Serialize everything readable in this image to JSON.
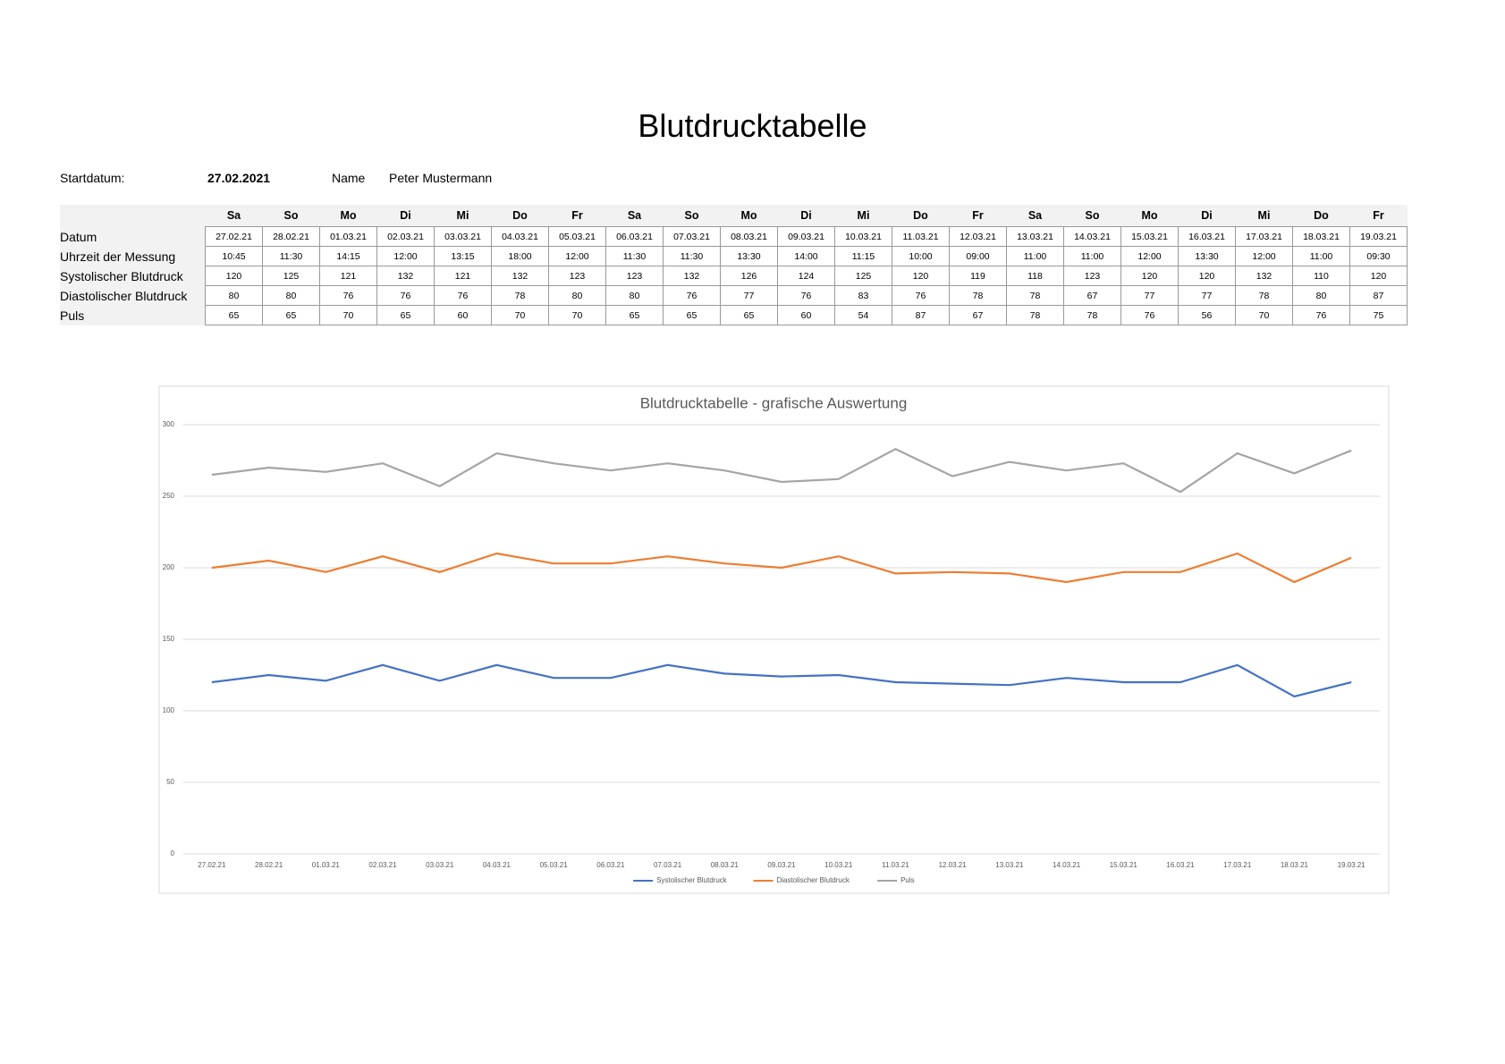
{
  "header": {
    "title": "Blutdrucktabelle",
    "start_label": "Startdatum:",
    "start_value": "27.02.2021",
    "name_label": "Name",
    "name_value": "Peter Mustermann"
  },
  "table": {
    "weekdays": [
      "Sa",
      "So",
      "Mo",
      "Di",
      "Mi",
      "Do",
      "Fr",
      "Sa",
      "So",
      "Mo",
      "Di",
      "Mi",
      "Do",
      "Fr",
      "Sa",
      "So",
      "Mo",
      "Di",
      "Mi",
      "Do",
      "Fr"
    ],
    "rows": [
      {
        "label": "Datum",
        "cells": [
          "27.02.21",
          "28.02.21",
          "01.03.21",
          "02.03.21",
          "03.03.21",
          "04.03.21",
          "05.03.21",
          "06.03.21",
          "07.03.21",
          "08.03.21",
          "09.03.21",
          "10.03.21",
          "11.03.21",
          "12.03.21",
          "13.03.21",
          "14.03.21",
          "15.03.21",
          "16.03.21",
          "17.03.21",
          "18.03.21",
          "19.03.21"
        ]
      },
      {
        "label": "Uhrzeit der Messung",
        "cells": [
          "10:45",
          "11:30",
          "14:15",
          "12:00",
          "13:15",
          "18:00",
          "12:00",
          "11:30",
          "11:30",
          "13:30",
          "14:00",
          "11:15",
          "10:00",
          "09:00",
          "11:00",
          "11:00",
          "12:00",
          "13:30",
          "12:00",
          "11:00",
          "09:30"
        ]
      },
      {
        "label": "Systolischer Blutdruck",
        "cells": [
          120,
          125,
          121,
          132,
          121,
          132,
          123,
          123,
          132,
          126,
          124,
          125,
          120,
          119,
          118,
          123,
          120,
          120,
          132,
          110,
          120
        ]
      },
      {
        "label": "Diastolischer Blutdruck",
        "cells": [
          80,
          80,
          76,
          76,
          76,
          78,
          80,
          80,
          76,
          77,
          76,
          83,
          76,
          78,
          78,
          67,
          77,
          77,
          78,
          80,
          87
        ]
      },
      {
        "label": "Puls",
        "cells": [
          65,
          65,
          70,
          65,
          60,
          70,
          70,
          65,
          65,
          65,
          60,
          54,
          87,
          67,
          78,
          78,
          76,
          56,
          70,
          76,
          75
        ]
      }
    ]
  },
  "chart_data": {
    "type": "line",
    "stacked": true,
    "title": "Blutdrucktabelle - grafische Auswertung",
    "categories": [
      "27.02.21",
      "28.02.21",
      "01.03.21",
      "02.03.21",
      "03.03.21",
      "04.03.21",
      "05.03.21",
      "06.03.21",
      "07.03.21",
      "08.03.21",
      "09.03.21",
      "10.03.21",
      "11.03.21",
      "12.03.21",
      "13.03.21",
      "14.03.21",
      "15.03.21",
      "16.03.21",
      "17.03.21",
      "18.03.21",
      "19.03.21"
    ],
    "series": [
      {
        "name": "Systolischer Blutdruck",
        "color": "#4472c4",
        "values": [
          120,
          125,
          121,
          132,
          121,
          132,
          123,
          123,
          132,
          126,
          124,
          125,
          120,
          119,
          118,
          123,
          120,
          120,
          132,
          110,
          120
        ]
      },
      {
        "name": "Diastolischer Blutdruck",
        "color": "#ed7d31",
        "values": [
          80,
          80,
          76,
          76,
          76,
          78,
          80,
          80,
          76,
          77,
          76,
          83,
          76,
          78,
          78,
          67,
          77,
          77,
          78,
          80,
          87
        ]
      },
      {
        "name": "Puls",
        "color": "#a5a5a5",
        "values": [
          65,
          65,
          70,
          65,
          60,
          70,
          70,
          65,
          65,
          65,
          60,
          54,
          87,
          67,
          78,
          78,
          76,
          56,
          70,
          76,
          75
        ]
      }
    ],
    "ylim": [
      0,
      300
    ],
    "yticks": [
      0,
      50,
      100,
      150,
      200,
      250,
      300
    ],
    "grid": true,
    "legend": "bottom"
  }
}
